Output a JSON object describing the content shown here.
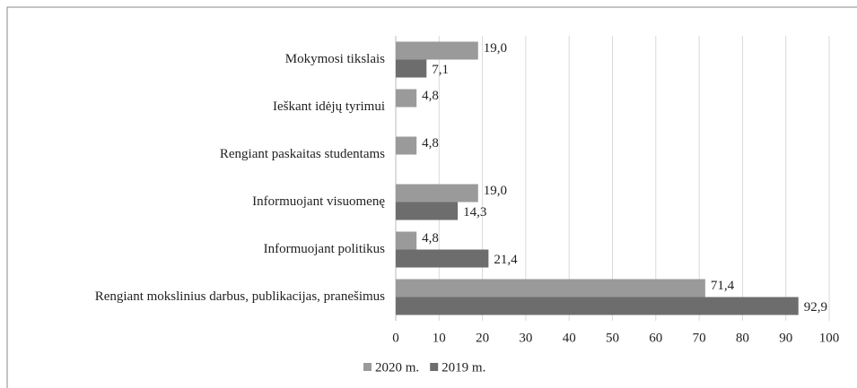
{
  "chart_data": {
    "type": "hbar",
    "categories": [
      "Mokymosi tikslais",
      "Ieškant idėjų tyrimui",
      "Rengiant paskaitas studentams",
      "Informuojant visuomenę",
      "Informuojant politikus",
      "Rengiant mokslinius darbus, publikacijas, pranešimus"
    ],
    "series": [
      {
        "name": "2020 m.",
        "color": "#9a9a9a",
        "values": [
          19.0,
          4.8,
          4.8,
          19.0,
          4.8,
          71.4
        ],
        "value_labels": [
          "19,0",
          "4,8",
          "4,8",
          "19,0",
          "4,8",
          "71,4"
        ]
      },
      {
        "name": "2019 m.",
        "color": "#6d6d6d",
        "values": [
          7.1,
          null,
          null,
          14.3,
          21.4,
          92.9
        ],
        "value_labels": [
          "7,1",
          null,
          null,
          "14,3",
          "21,4",
          "92,9"
        ]
      }
    ],
    "xlim": [
      0,
      100
    ],
    "xticks": [
      0,
      10,
      20,
      30,
      40,
      50,
      60,
      70,
      80,
      90,
      100
    ],
    "grid": true,
    "legend": "bottom"
  }
}
